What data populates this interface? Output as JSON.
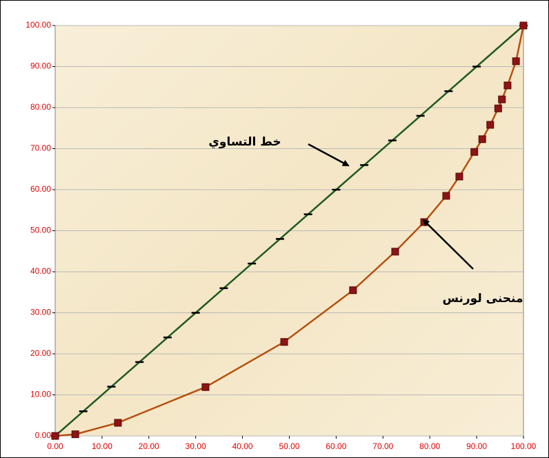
{
  "chart_data": {
    "type": "line",
    "annotations": [
      "خط التساوي",
      "منحنى لورنس"
    ],
    "series": [
      {
        "color": "#1f5a22",
        "marker_color": "#000000",
        "marker": "dash",
        "x": [
          0,
          6,
          12,
          18,
          24,
          30,
          36,
          42,
          48,
          54,
          60,
          66,
          72,
          78,
          84,
          90,
          100
        ],
        "values": [
          0,
          6,
          12,
          18,
          24,
          30,
          36,
          42,
          48,
          54,
          60,
          66,
          72,
          78,
          84,
          90,
          100
        ]
      },
      {
        "color": "#b5500f",
        "marker_color": "#8b1414",
        "marker": "square",
        "x": [
          0,
          4.3,
          13.4,
          32.1,
          48.9,
          63.6,
          72.6,
          78.8,
          83.5,
          86.3,
          89.5,
          91.2,
          92.9,
          94.6,
          95.4,
          96.6,
          98.4,
          100
        ],
        "values": [
          0,
          0.4,
          3.2,
          11.9,
          22.9,
          35.5,
          44.9,
          52.1,
          58.5,
          63.2,
          69.2,
          72.3,
          75.8,
          79.8,
          82.0,
          85.4,
          91.3,
          100
        ]
      }
    ],
    "xlim": [
      0,
      100
    ],
    "xticks": [
      {
        "value": 0,
        "label": "0.00"
      },
      {
        "value": 10,
        "label": "10.00"
      },
      {
        "value": 20,
        "label": "20.00"
      },
      {
        "value": 30,
        "label": "30.00"
      },
      {
        "value": 40,
        "label": "40.00"
      },
      {
        "value": 50,
        "label": "50.00"
      },
      {
        "value": 60,
        "label": "60.00"
      },
      {
        "value": 70,
        "label": "70.00"
      },
      {
        "value": 80,
        "label": "80.00"
      },
      {
        "value": 90,
        "label": "90.00"
      },
      {
        "value": 100,
        "label": "100.00"
      }
    ],
    "ylim": [
      0,
      100
    ],
    "yticks": [
      {
        "value": 0,
        "label": "0.00"
      },
      {
        "value": 10,
        "label": "10.00"
      },
      {
        "value": 20,
        "label": "20.00"
      },
      {
        "value": 30,
        "label": "30.00"
      },
      {
        "value": 40,
        "label": "40.00"
      },
      {
        "value": 50,
        "label": "50.00"
      },
      {
        "value": 60,
        "label": "60.00"
      },
      {
        "value": 70,
        "label": "70.00"
      },
      {
        "value": 80,
        "label": "80.00"
      },
      {
        "value": 90,
        "label": "90.00"
      },
      {
        "value": 100,
        "label": "100.00"
      }
    ],
    "grid": true,
    "tick_color": "#e00000"
  }
}
